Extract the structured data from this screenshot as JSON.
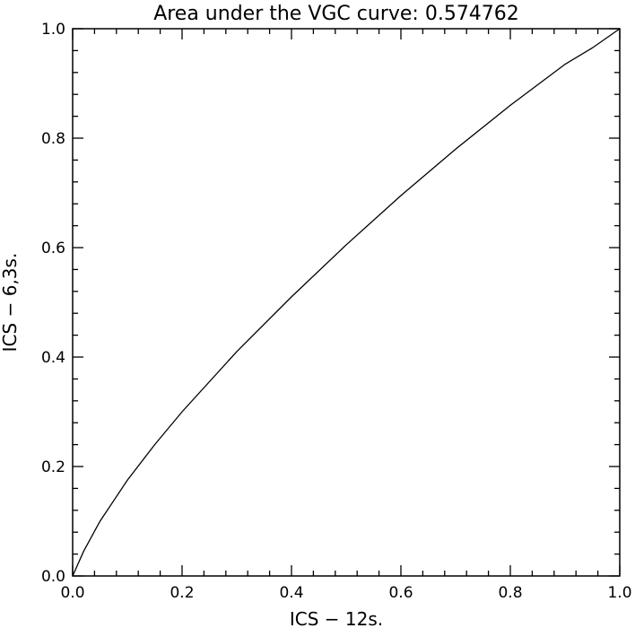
{
  "chart_data": {
    "type": "line",
    "title": "Area under the VGC curve: 0.574762",
    "xlabel": "ICS − 12s.",
    "ylabel": "ICS − 6,3s.",
    "xlim": [
      0.0,
      1.0
    ],
    "ylim": [
      0.0,
      1.0
    ],
    "xticks": [
      "0.0",
      "0.2",
      "0.4",
      "0.6",
      "0.8",
      "1.0"
    ],
    "yticks": [
      "0.0",
      "0.2",
      "0.4",
      "0.6",
      "0.8",
      "1.0"
    ],
    "grid": false,
    "series": [
      {
        "x": [
          0.0,
          0.02,
          0.05,
          0.1,
          0.15,
          0.2,
          0.3,
          0.4,
          0.5,
          0.6,
          0.7,
          0.8,
          0.9,
          0.95,
          1.0
        ],
        "y": [
          0.0,
          0.045,
          0.1,
          0.175,
          0.24,
          0.3,
          0.41,
          0.51,
          0.605,
          0.695,
          0.78,
          0.86,
          0.935,
          0.965,
          1.0
        ]
      }
    ],
    "colors": {
      "axes": "#000000",
      "line": "#000000",
      "background": "#ffffff"
    }
  }
}
